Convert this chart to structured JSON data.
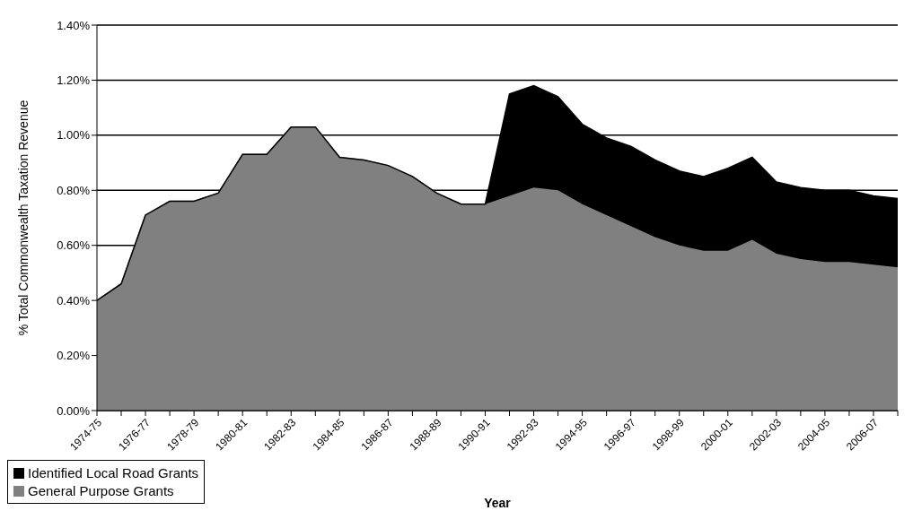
{
  "chart_data": {
    "type": "area",
    "stacked": true,
    "xlabel": "Year",
    "ylabel": "% Total Commonwealth Taxation Revenue",
    "categories": [
      "1974-75",
      null,
      "1976-77",
      null,
      "1978-79",
      null,
      "1980-81",
      null,
      "1982-83",
      null,
      "1984-85",
      null,
      "1986-87",
      null,
      "1988-89",
      null,
      "1990-91",
      null,
      "1992-93",
      null,
      "1994-95",
      null,
      "1996-97",
      null,
      "1998-99",
      null,
      "2000-01",
      null,
      "2002-03",
      null,
      "2004-05",
      null,
      "2006-07",
      null
    ],
    "series": [
      {
        "name": "General Purpose Grants",
        "color": "#808080",
        "values": [
          0.4,
          0.46,
          0.71,
          0.76,
          0.76,
          0.79,
          0.93,
          0.93,
          1.03,
          1.03,
          0.92,
          0.91,
          0.89,
          0.85,
          0.79,
          0.75,
          0.75,
          0.78,
          0.81,
          0.8,
          0.75,
          0.71,
          0.67,
          0.63,
          0.6,
          0.58,
          0.58,
          0.62,
          0.57,
          0.55,
          0.54,
          0.54,
          0.53,
          0.52
        ]
      },
      {
        "name": "Identified Local Road Grants",
        "color": "#000000",
        "values": [
          0,
          0,
          0,
          0,
          0,
          0,
          0,
          0,
          0,
          0,
          0,
          0,
          0,
          0,
          0,
          0,
          0,
          0.37,
          0.37,
          0.34,
          0.29,
          0.28,
          0.29,
          0.28,
          0.27,
          0.27,
          0.3,
          0.3,
          0.26,
          0.26,
          0.26,
          0.26,
          0.25,
          0.25
        ]
      }
    ],
    "ylim": [
      0,
      1.4
    ],
    "yticks": [
      {
        "value": 0,
        "label": "0.00%"
      },
      {
        "value": 0.2,
        "label": "0.20%"
      },
      {
        "value": 0.4,
        "label": "0.40%"
      },
      {
        "value": 0.6,
        "label": "0.60%"
      },
      {
        "value": 0.8,
        "label": "0.80%"
      },
      {
        "value": 1.0,
        "label": "1.00%"
      },
      {
        "value": 1.2,
        "label": "1.20%"
      },
      {
        "value": 1.4,
        "label": "1.40%"
      }
    ],
    "grid": "y",
    "legend": "bottom left"
  }
}
